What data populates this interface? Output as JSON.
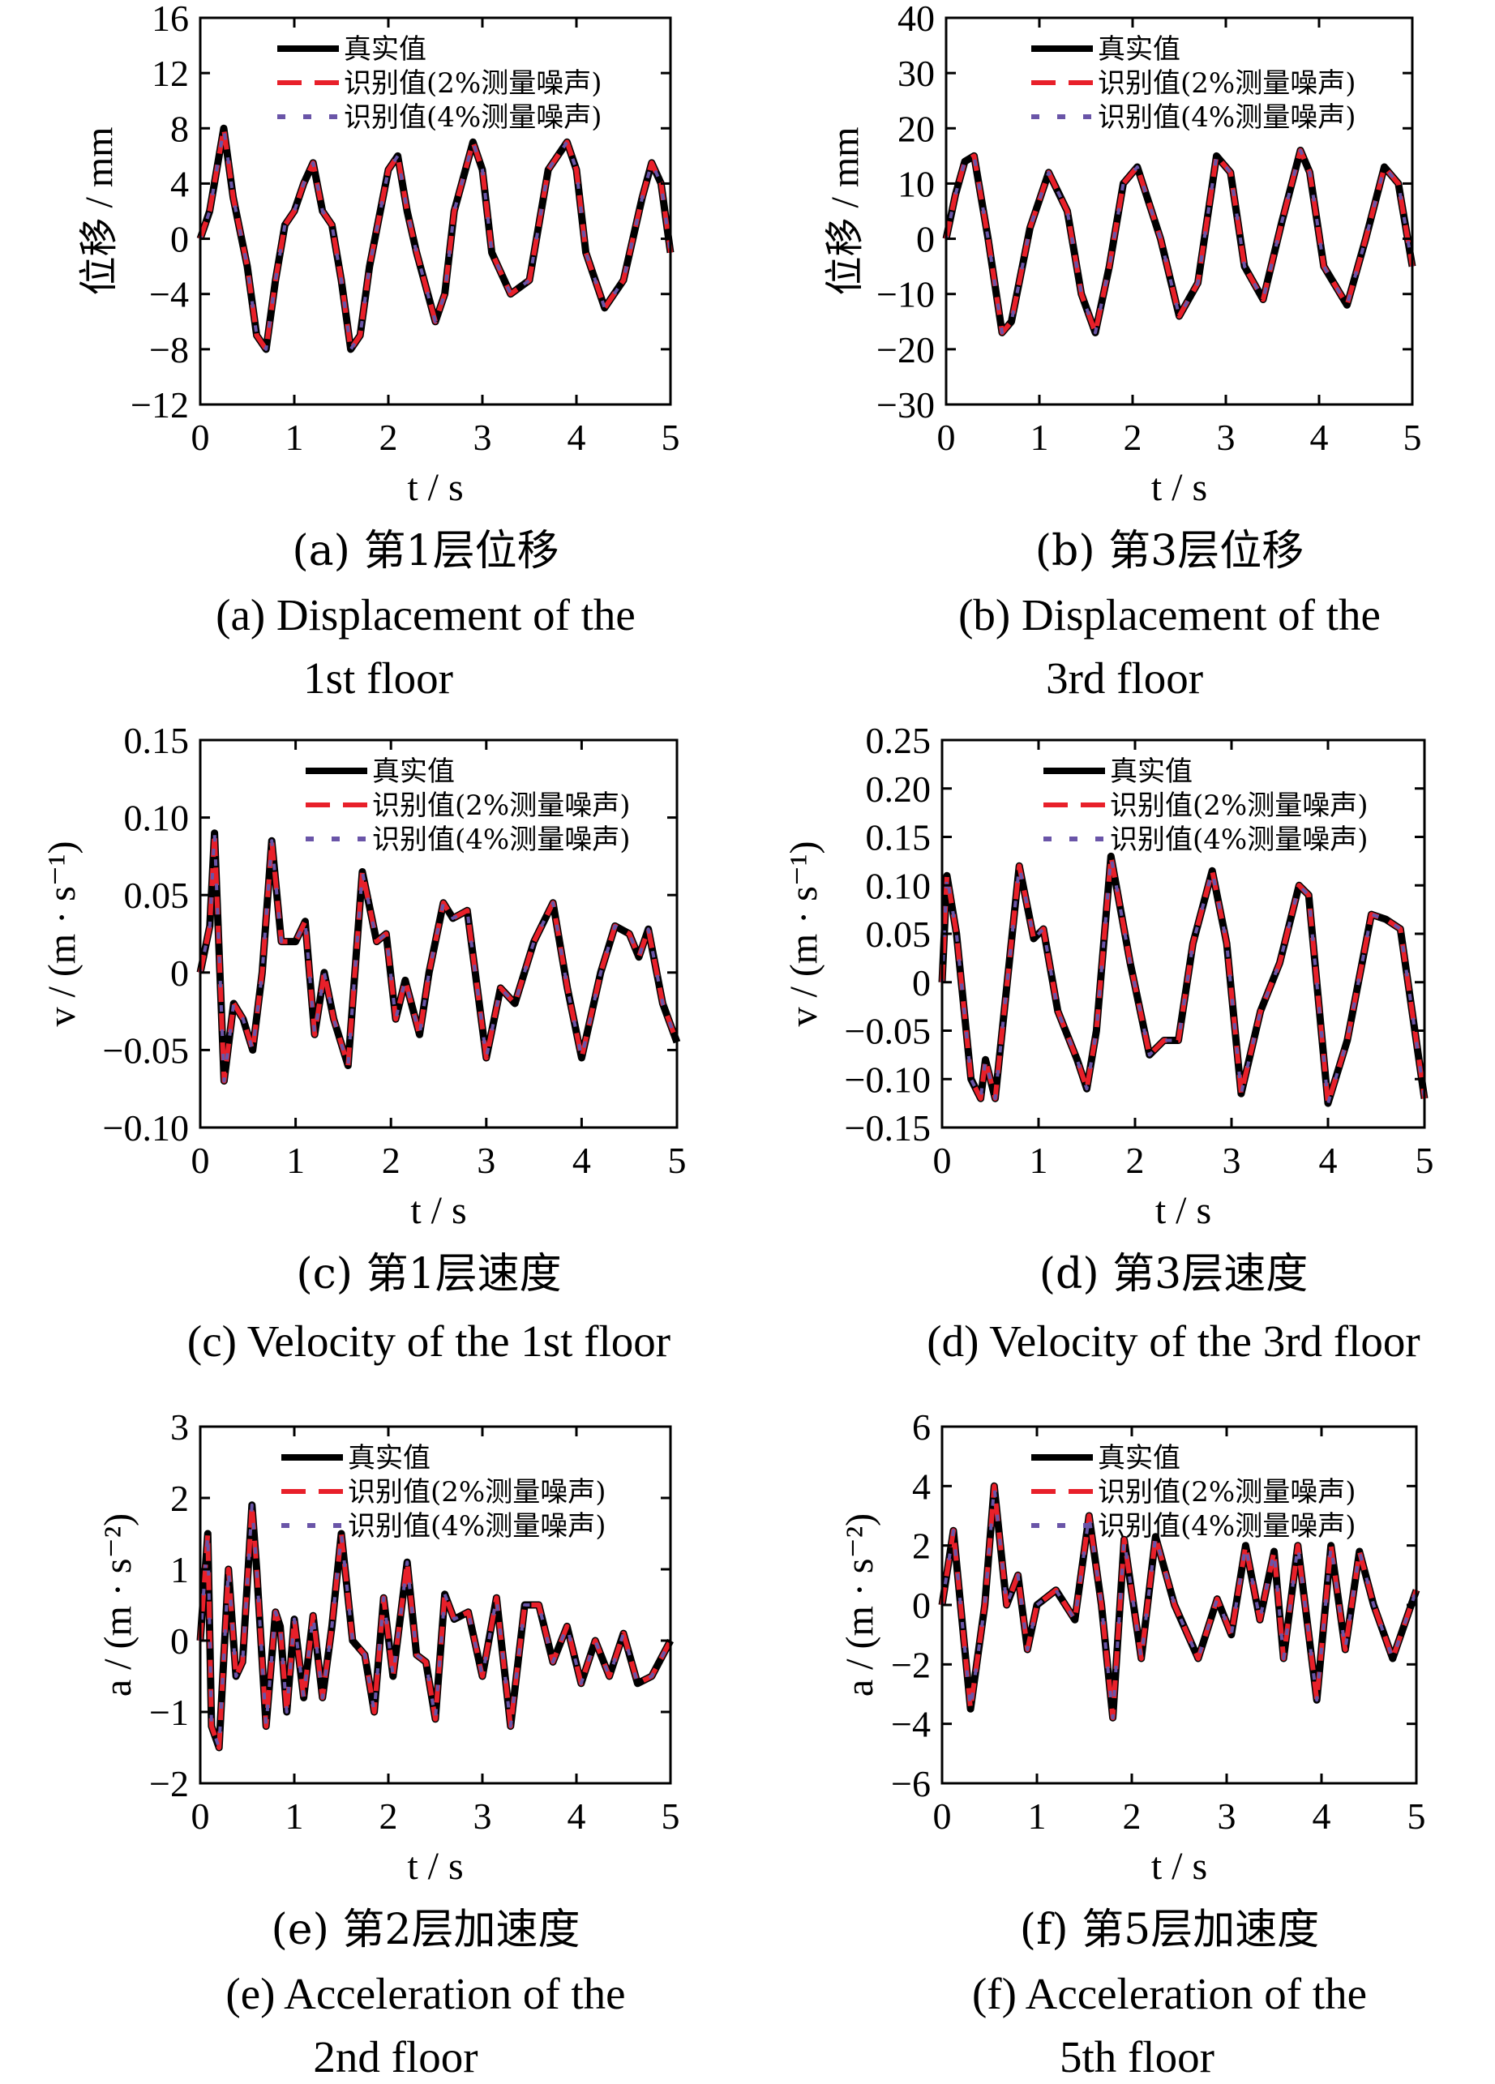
{
  "colors": {
    "true_value": "#000000",
    "noise2": "#e8202a",
    "noise4": "#6a55a8"
  },
  "legend_items": [
    {
      "label": "真实值",
      "style": "solid",
      "color": "#000000"
    },
    {
      "label": "识别值(2%测量噪声)",
      "style": "long-dash",
      "color": "#e8202a"
    },
    {
      "label": "识别值(4%测量噪声)",
      "style": "dash",
      "color": "#6a55a8"
    }
  ],
  "chart_data": [
    {
      "id": "a",
      "type": "line",
      "xlabel": "t / s",
      "ylabel": "位移 / mm",
      "xlim": [
        0,
        5
      ],
      "ylim": [
        -12,
        16
      ],
      "xticks": [
        "0",
        "1",
        "2",
        "3",
        "4",
        "5"
      ],
      "yticks": [
        "−12",
        "−8",
        "−4",
        "0",
        "4",
        "8",
        "12",
        "16"
      ],
      "caption_cn": "(a)  第1层位移",
      "caption_en": [
        "(a)  Displacement of the",
        "1st floor"
      ],
      "series": [
        {
          "name": "真实值",
          "x": [
            0,
            0.1,
            0.2,
            0.25,
            0.35,
            0.5,
            0.6,
            0.7,
            0.8,
            0.9,
            1.0,
            1.1,
            1.2,
            1.3,
            1.4,
            1.5,
            1.6,
            1.7,
            1.8,
            2.0,
            2.1,
            2.2,
            2.3,
            2.5,
            2.6,
            2.7,
            2.9,
            3.0,
            3.1,
            3.3,
            3.5,
            3.7,
            3.9,
            4.0,
            4.1,
            4.3,
            4.5,
            4.7,
            4.8,
            4.9,
            5.0
          ],
          "y": [
            0,
            2,
            6,
            8,
            3,
            -2,
            -7,
            -8,
            -3,
            1,
            2,
            4,
            5.5,
            2,
            1,
            -3,
            -8,
            -7,
            -2,
            5,
            6,
            2,
            -1,
            -6,
            -4,
            2,
            7,
            5,
            -1,
            -4,
            -3,
            5,
            7,
            5,
            -1,
            -5,
            -3,
            3,
            5.5,
            4,
            -1
          ]
        }
      ]
    },
    {
      "id": "b",
      "type": "line",
      "xlabel": "t / s",
      "ylabel": "位移 / mm",
      "xlim": [
        0,
        5
      ],
      "ylim": [
        -30,
        40
      ],
      "xticks": [
        "0",
        "1",
        "2",
        "3",
        "4",
        "5"
      ],
      "yticks": [
        "−30",
        "−20",
        "−10",
        "0",
        "10",
        "20",
        "30",
        "40"
      ],
      "caption_cn": "(b)  第3层位移",
      "caption_en": [
        "(b)  Displacement of the",
        "3rd floor"
      ],
      "series": [
        {
          "name": "真实值",
          "x": [
            0,
            0.1,
            0.2,
            0.3,
            0.45,
            0.6,
            0.7,
            0.9,
            1.1,
            1.3,
            1.45,
            1.6,
            1.75,
            1.9,
            2.05,
            2.3,
            2.5,
            2.7,
            2.9,
            3.05,
            3.2,
            3.4,
            3.6,
            3.8,
            3.9,
            4.05,
            4.3,
            4.5,
            4.7,
            4.85,
            5.0
          ],
          "y": [
            0,
            8,
            14,
            15,
            0,
            -17,
            -15,
            2,
            12,
            5,
            -10,
            -17,
            -5,
            10,
            13,
            0,
            -14,
            -8,
            15,
            12,
            -5,
            -11,
            3,
            16,
            12,
            -5,
            -12,
            0,
            13,
            10,
            -5
          ]
        }
      ]
    },
    {
      "id": "c",
      "type": "line",
      "xlabel": "t / s",
      "ylabel": "v / (m · s⁻¹)",
      "xlim": [
        0,
        5
      ],
      "ylim": [
        -0.1,
        0.15
      ],
      "xticks": [
        "0",
        "1",
        "2",
        "3",
        "4",
        "5"
      ],
      "yticks": [
        "−0.10",
        "−0.05",
        "0",
        "0.05",
        "0.10",
        "0.15"
      ],
      "caption_cn": "(c)  第1层速度",
      "caption_en": [
        "(c)  Velocity of the 1st floor"
      ],
      "series": [
        {
          "name": "真实值",
          "x": [
            0,
            0.1,
            0.15,
            0.25,
            0.35,
            0.45,
            0.55,
            0.65,
            0.75,
            0.85,
            1.0,
            1.1,
            1.2,
            1.3,
            1.4,
            1.55,
            1.7,
            1.85,
            1.95,
            2.05,
            2.15,
            2.3,
            2.4,
            2.55,
            2.65,
            2.8,
            3.0,
            3.15,
            3.3,
            3.5,
            3.7,
            3.85,
            4.0,
            4.2,
            4.35,
            4.5,
            4.6,
            4.7,
            4.85,
            5.0
          ],
          "y": [
            0,
            0.03,
            0.09,
            -0.07,
            -0.02,
            -0.03,
            -0.05,
            0.0,
            0.085,
            0.02,
            0.02,
            0.033,
            -0.04,
            0.0,
            -0.03,
            -0.06,
            0.065,
            0.02,
            0.025,
            -0.03,
            -0.005,
            -0.04,
            0.0,
            0.045,
            0.035,
            0.04,
            -0.055,
            -0.01,
            -0.02,
            0.02,
            0.045,
            -0.01,
            -0.055,
            0.0,
            0.03,
            0.025,
            0.01,
            0.028,
            -0.02,
            -0.045
          ]
        }
      ]
    },
    {
      "id": "d",
      "type": "line",
      "xlabel": "t / s",
      "ylabel": "v / (m · s⁻¹)",
      "xlim": [
        0,
        5
      ],
      "ylim": [
        -0.15,
        0.25
      ],
      "xticks": [
        "0",
        "1",
        "2",
        "3",
        "4",
        "5"
      ],
      "yticks": [
        "−0.15",
        "−0.10",
        "−0.05",
        "0",
        "0.05",
        "0.10",
        "0.15",
        "0.20",
        "0.25"
      ],
      "caption_cn": "(d)  第3层速度",
      "caption_en": [
        "(d)  Velocity of the 3rd floor"
      ],
      "series": [
        {
          "name": "真实值",
          "x": [
            0,
            0.05,
            0.15,
            0.3,
            0.4,
            0.45,
            0.55,
            0.8,
            0.95,
            1.05,
            1.2,
            1.4,
            1.5,
            1.6,
            1.75,
            1.95,
            2.15,
            2.3,
            2.45,
            2.6,
            2.8,
            2.95,
            3.1,
            3.3,
            3.5,
            3.7,
            3.8,
            4.0,
            4.2,
            4.45,
            4.6,
            4.75,
            5.0
          ],
          "y": [
            0,
            0.11,
            0.05,
            -0.1,
            -0.12,
            -0.08,
            -0.12,
            0.12,
            0.045,
            0.055,
            -0.03,
            -0.08,
            -0.11,
            -0.05,
            0.13,
            0.02,
            -0.075,
            -0.06,
            -0.06,
            0.04,
            0.115,
            0.04,
            -0.115,
            -0.03,
            0.02,
            0.1,
            0.09,
            -0.125,
            -0.06,
            0.07,
            0.065,
            0.055,
            -0.12
          ]
        }
      ]
    },
    {
      "id": "e",
      "type": "line",
      "xlabel": "t / s",
      "ylabel": "a / (m · s⁻²)",
      "xlim": [
        0,
        5
      ],
      "ylim": [
        -2,
        3
      ],
      "xticks": [
        "0",
        "1",
        "2",
        "3",
        "4",
        "5"
      ],
      "yticks": [
        "−2",
        "−1",
        "0",
        "1",
        "2",
        "3"
      ],
      "caption_cn": "(e)  第2层加速度",
      "caption_en": [
        "(e)  Acceleration of the",
        "2nd floor"
      ],
      "series": [
        {
          "name": "真实值",
          "x": [
            0,
            0.08,
            0.12,
            0.2,
            0.3,
            0.38,
            0.45,
            0.55,
            0.6,
            0.7,
            0.8,
            0.85,
            0.92,
            1.0,
            1.1,
            1.2,
            1.3,
            1.4,
            1.5,
            1.62,
            1.75,
            1.85,
            1.95,
            2.05,
            2.2,
            2.3,
            2.4,
            2.5,
            2.6,
            2.7,
            2.85,
            3.0,
            3.15,
            3.3,
            3.45,
            3.6,
            3.75,
            3.9,
            4.05,
            4.2,
            4.35,
            4.5,
            4.65,
            4.8,
            5.0
          ],
          "y": [
            0,
            1.5,
            -1.2,
            -1.5,
            1.0,
            -0.5,
            -0.3,
            1.9,
            1.0,
            -1.2,
            0.4,
            0.2,
            -1.0,
            0.3,
            -0.8,
            0.35,
            -0.8,
            0.2,
            1.5,
            0.0,
            -0.2,
            -1.0,
            0.6,
            -0.5,
            1.1,
            -0.2,
            -0.3,
            -1.1,
            0.65,
            0.3,
            0.4,
            -0.5,
            0.6,
            -1.2,
            0.5,
            0.5,
            -0.3,
            0.2,
            -0.6,
            0.0,
            -0.5,
            0.1,
            -0.6,
            -0.5,
            0.0
          ]
        }
      ]
    },
    {
      "id": "f",
      "type": "line",
      "xlabel": "t / s",
      "ylabel": "a / (m · s⁻²)",
      "xlim": [
        0,
        5
      ],
      "ylim": [
        -6,
        6
      ],
      "xticks": [
        "0",
        "1",
        "2",
        "3",
        "4",
        "5"
      ],
      "yticks": [
        "−6",
        "−4",
        "−2",
        "0",
        "2",
        "4",
        "6"
      ],
      "caption_cn": "(f)  第5层加速度",
      "caption_en": [
        "(f)  Acceleration of the",
        "5th floor"
      ],
      "series": [
        {
          "name": "真实值",
          "x": [
            0,
            0.12,
            0.3,
            0.45,
            0.55,
            0.68,
            0.8,
            0.9,
            1.0,
            1.2,
            1.4,
            1.55,
            1.68,
            1.8,
            1.92,
            2.1,
            2.25,
            2.45,
            2.7,
            2.9,
            3.05,
            3.2,
            3.35,
            3.5,
            3.6,
            3.75,
            3.95,
            4.1,
            4.25,
            4.4,
            4.55,
            4.75,
            5.0
          ],
          "y": [
            0,
            2.5,
            -3.5,
            0.0,
            4.0,
            0.0,
            1.0,
            -1.5,
            0.0,
            0.5,
            -0.5,
            3.0,
            0.0,
            -3.8,
            2.2,
            -1.8,
            2.3,
            0.0,
            -1.8,
            0.2,
            -1.0,
            2.0,
            -0.5,
            1.8,
            -1.8,
            2.0,
            -3.2,
            2.0,
            -1.5,
            1.8,
            0.0,
            -1.8,
            0.5
          ]
        }
      ]
    }
  ]
}
